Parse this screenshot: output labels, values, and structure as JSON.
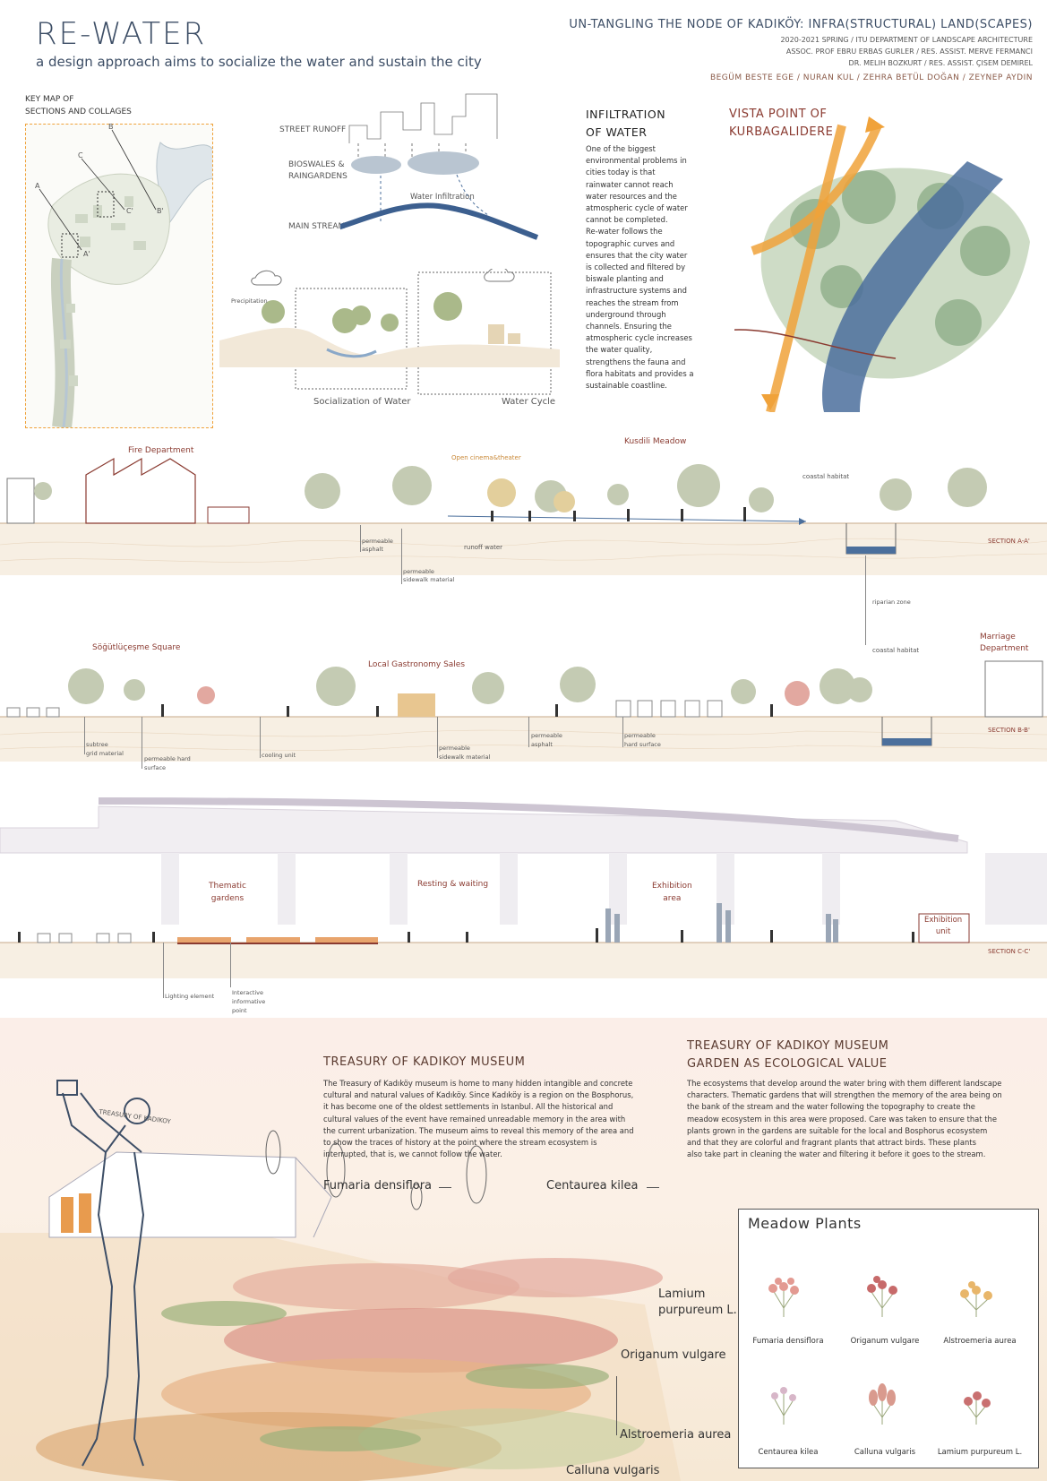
{
  "header": {
    "title": "RE-WATER",
    "subtitle": "a design approach aims to socialize the water and sustain the city",
    "project_title": "UN-TANGLING THE NODE OF KADIKÖY: INFRA(STRUCTURAL) LAND(SCAPES)",
    "course": "2020-2021 SPRING / ITU DEPARTMENT OF LANDSCAPE ARCHITECTURE",
    "advisors_1": "ASSOC. PROF EBRU ERBAS GURLER / RES. ASSIST. MERVE FERMANCI",
    "advisors_2": "DR. MELIH BOZKURT / RES. ASSIST. ÇISEM DEMIREL",
    "team": "BEGÜM BESTE EGE / NURAN KUL / ZEHRA BETÜL DOĞAN / ZEYNEP AYDIN"
  },
  "keymap": {
    "title_1": "KEY MAP OF",
    "title_2": "SECTIONS AND COLLAGES",
    "letters": [
      "A",
      "B",
      "C",
      "A'",
      "B'",
      "C'"
    ]
  },
  "water_diagram": {
    "street_runoff": "STREET RUNOFF",
    "bioswales_1": "BIOSWALES &",
    "bioswales_2": "RAINGARDENS",
    "water_infiltration": "Water Infiltration",
    "main_stream": "MAIN STREAM",
    "precipitation": "Precipitation",
    "socialization": "Socialization of Water",
    "water_cycle": "Water Cycle"
  },
  "infiltration": {
    "heading_1": "INFILTRATION",
    "heading_2": "OF WATER",
    "lines": [
      "One of the biggest",
      "environmental problems in",
      "cities today is that",
      "rainwater cannot reach",
      "water resources and the",
      "atmospheric cycle of water",
      "cannot be completed.",
      "Re-water follows the",
      "topographic curves and",
      "ensures that the city water",
      "is collected and filtered by",
      "biswale planting and",
      "infrastructure systems and",
      "reaches the stream from",
      "underground through",
      "channels. Ensuring the",
      "atmospheric cycle increases",
      "the water quality,",
      "strengthens the fauna and",
      "flora habitats and provides a",
      "sustainable coastline."
    ]
  },
  "vista": {
    "heading_1": "VISTA POINT OF",
    "heading_2": "KURBAGALIDERE"
  },
  "section_a": {
    "fire_department": "Fire Department",
    "open_cinema": "Open cinema&theater",
    "kusdili": "Kusdili Meadow",
    "coastal_habitat": "coastal habitat",
    "runoff_water": "runoff water",
    "permeable_asphalt_1": "permeable",
    "permeable_asphalt_2": "asphalt",
    "permeable_sidewalk_1": "permeable",
    "permeable_sidewalk_2": "sidewalk material",
    "riparian": "riparian zone",
    "label": "SECTION A-A'"
  },
  "section_b": {
    "square": "Söğütlüçeşme Square",
    "gastronomy": "Local Gastronomy Sales",
    "coastal_habitat": "coastal habitat",
    "marriage_1": "Marriage",
    "marriage_2": "Department",
    "subtree_1": "subtree",
    "subtree_2": "grid material",
    "permeable_hard_1": "permeable hard",
    "permeable_hard_2": "surface",
    "cooling": "cooling unit",
    "perm_sidewalk_1": "permeable",
    "perm_sidewalk_2": "sidewalk material",
    "perm_asphalt_1": "permeable",
    "perm_asphalt_2": "asphalt",
    "perm_hard2_1": "permeable",
    "perm_hard2_2": "hard surface",
    "label": "SECTION B-B'"
  },
  "section_c": {
    "thematic_1": "Thematic",
    "thematic_2": "gardens",
    "resting": "Resting & waiting",
    "exhibition_1": "Exhibition",
    "exhibition_2": "area",
    "exh_unit_1": "Exhibition",
    "exh_unit_2": "unit",
    "lighting": "Lighting element",
    "interactive_1": "Interactive",
    "interactive_2": "informative",
    "interactive_3": "point",
    "label": "SECTION C-C'"
  },
  "museum": {
    "heading": "TREASURY OF KADIKOY MUSEUM",
    "text": [
      "The Treasury of Kadıköy museum is home to many hidden intangible and concrete",
      "cultural and natural values of Kadıköy. Since Kadıköy is a region on the Bosphorus,",
      "it has become one of the oldest settlements in Istanbul. All the historical and",
      "cultural values of the event have remained unreadable memory in the area with",
      "the current urbanization. The museum aims to reveal this memory of the area and",
      "to show the traces of history at the point where the stream ecosystem is",
      "interrupted, that is, we cannot follow the water."
    ],
    "building_sign": "TREASURY OF KADIKOY"
  },
  "garden": {
    "heading_1": "TREASURY OF KADIKOY MUSEUM",
    "heading_2": "GARDEN AS ECOLOGICAL VALUE",
    "text": [
      "The ecosystems that develop around the water bring with them different landscape",
      "characters. Thematic gardens that will strengthen the memory of the area being on",
      "the bank of the stream and the water following the topography to create the",
      "meadow ecosystem in this area were proposed. Care was taken to ensure that the",
      "plants grown in the gardens are suitable for the local and Bosphorus ecosystem",
      "and that they are colorful and fragrant plants that attract birds. These plants",
      "also take part in cleaning the water and filtering it before it goes to the stream."
    ]
  },
  "collage_labels": {
    "fumaria": "Fumaria densiflora",
    "centaurea": "Centaurea kilea",
    "lamium_1": "Lamium",
    "lamium_2": "purpureum L.",
    "origanum": "Origanum vulgare",
    "alstroemeria": "Alstroemeria aurea",
    "calluna": "Calluna vulgaris"
  },
  "meadow": {
    "title": "Meadow Plants",
    "plants": [
      "Fumaria densiflora",
      "Origanum vulgare",
      "Alstroemeria aurea",
      "Centaurea kilea",
      "Calluna vulgaris",
      "Lamium purpureum L."
    ]
  },
  "colors": {
    "navy": "#3d4e66",
    "water": "#4b6f9c",
    "orange": "#f0a23a",
    "rust": "#8a3a30",
    "sand": "#f3e7d4"
  }
}
